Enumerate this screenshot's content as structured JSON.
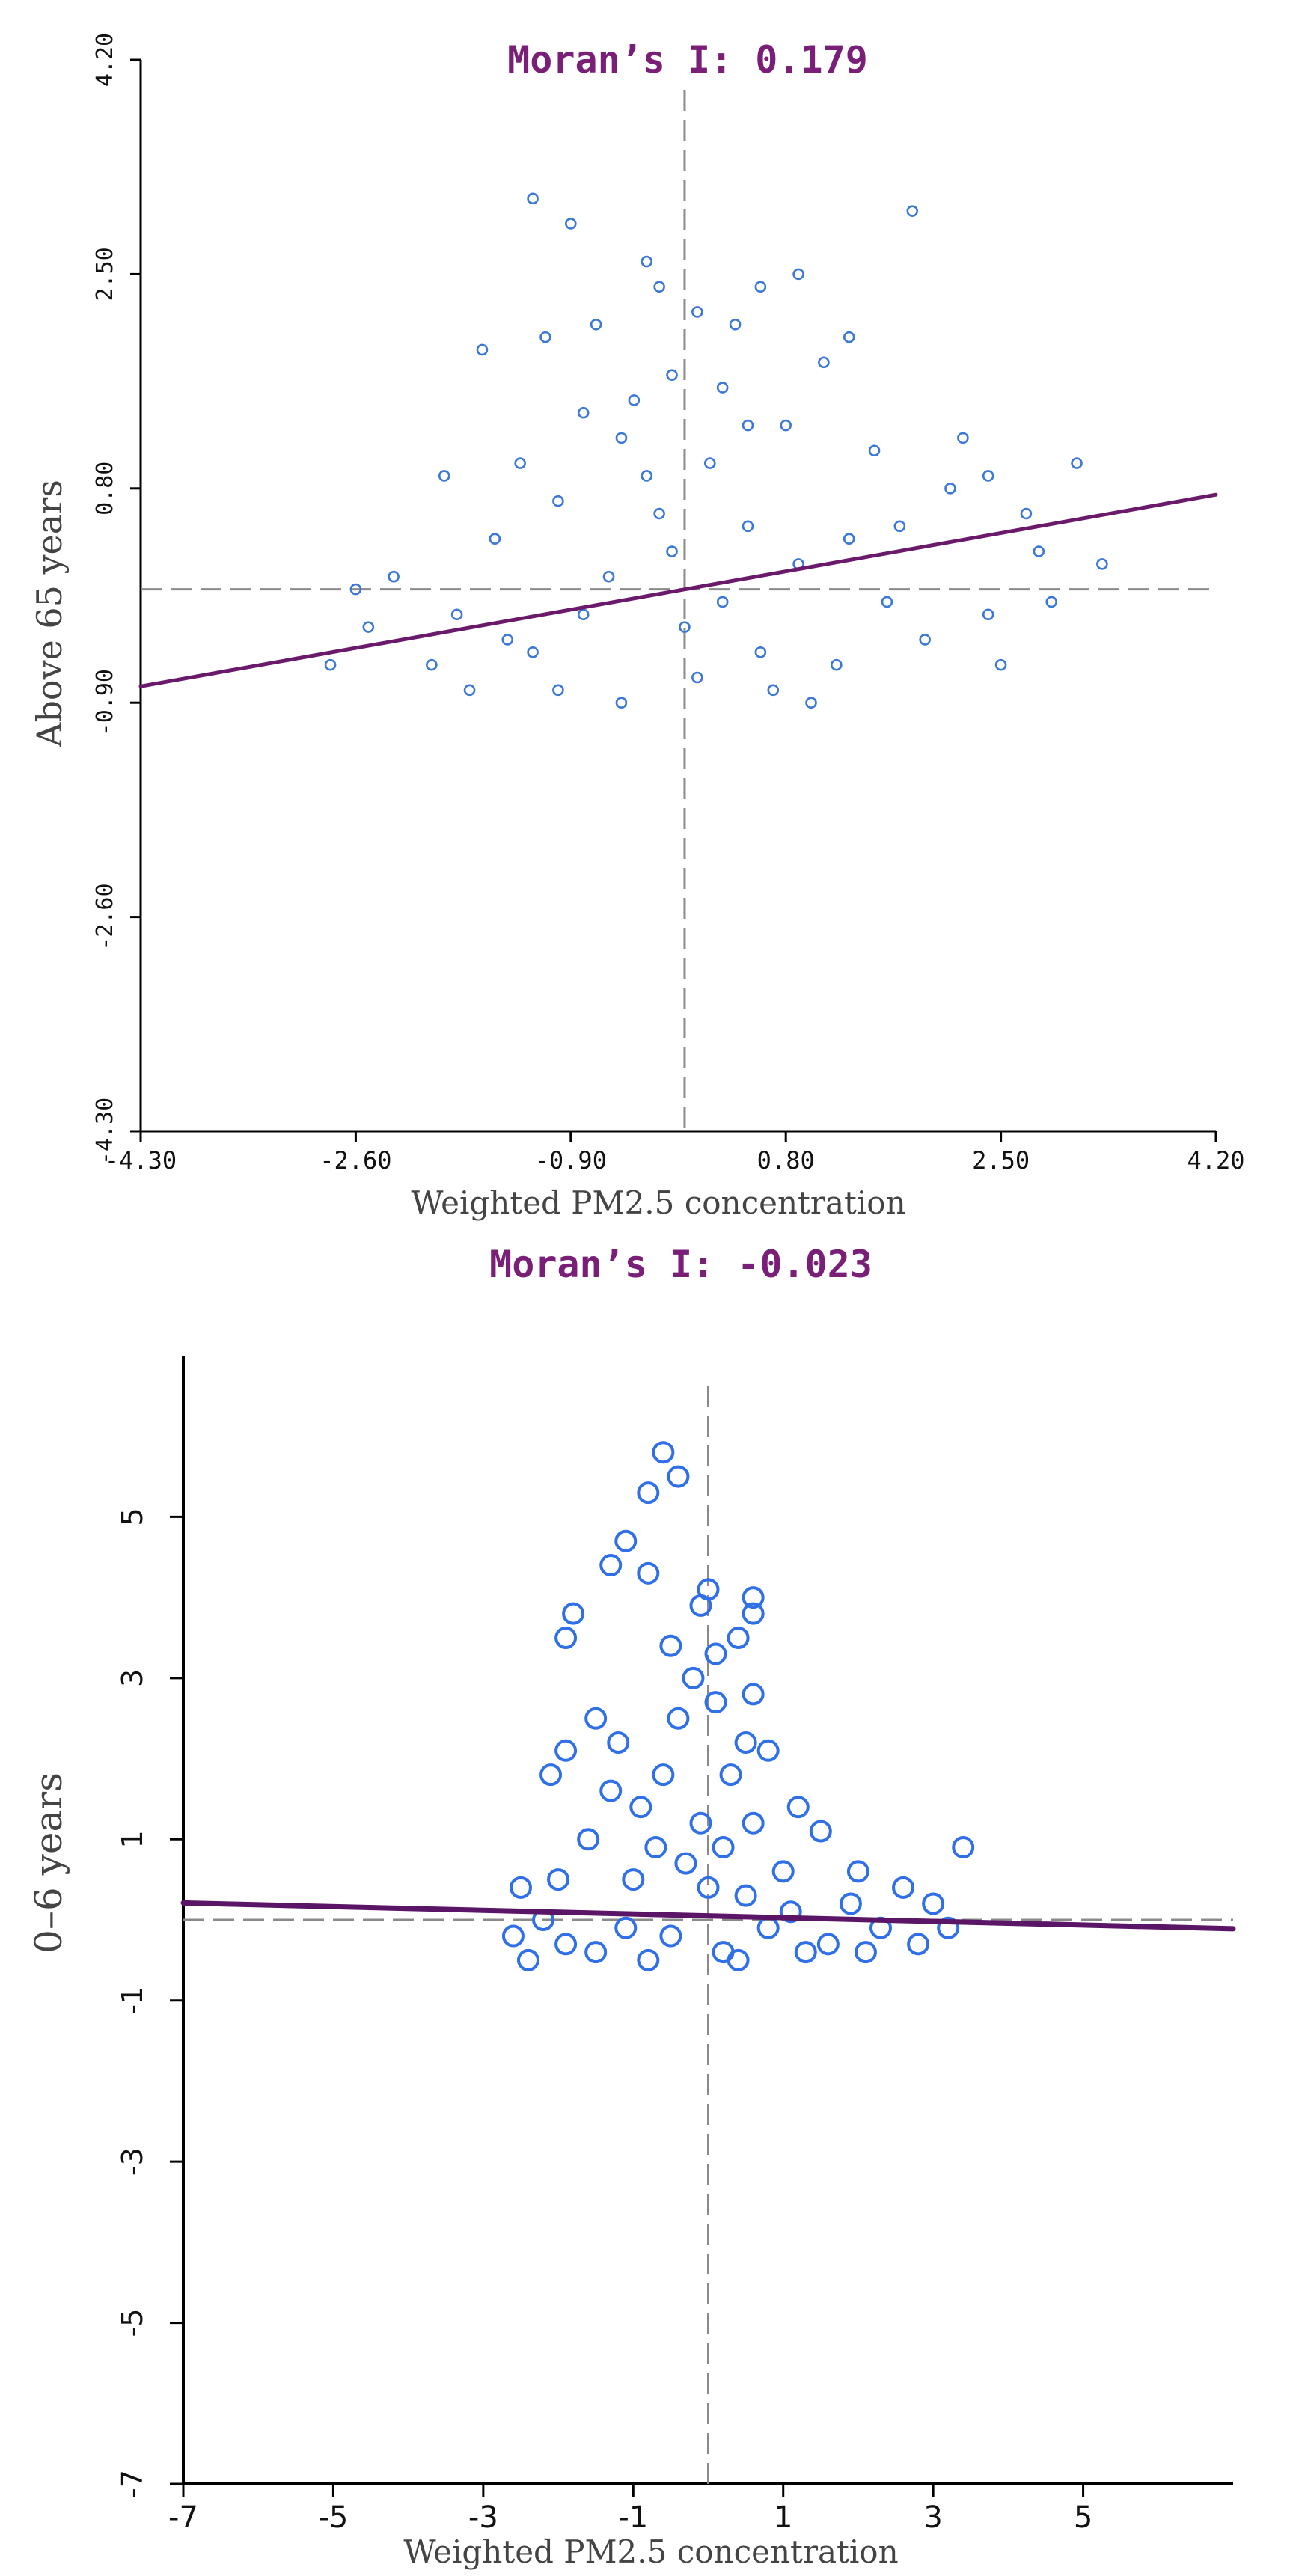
{
  "chart_data": [
    {
      "type": "scatter",
      "title": "Moran’s I: 0.179",
      "xlabel": "Weighted PM2.5 concentration",
      "ylabel": "Above 65 years",
      "xlim": [
        -4.3,
        4.2
      ],
      "ylim": [
        -4.3,
        4.2
      ],
      "xticks": [
        "-4.30",
        "-2.60",
        "-0.90",
        "0.80",
        "2.50",
        "4.20"
      ],
      "yticks": [
        "-4.30",
        "-2.60",
        "-0.90",
        "0.80",
        "2.50",
        "4.20"
      ],
      "x_mean": 0.0,
      "y_mean": 0.0,
      "regression_slope": 0.179,
      "regression_line": {
        "x": [
          -4.3,
          4.2
        ],
        "y": [
          -0.77,
          0.75
        ]
      },
      "points": [
        [
          -1.2,
          3.1
        ],
        [
          1.8,
          3.0
        ],
        [
          -0.3,
          2.6
        ],
        [
          -1.6,
          1.9
        ],
        [
          -0.7,
          2.1
        ],
        [
          0.4,
          2.1
        ],
        [
          1.3,
          2.0
        ],
        [
          -0.2,
          2.4
        ],
        [
          0.9,
          2.5
        ],
        [
          0.6,
          2.4
        ],
        [
          -0.1,
          1.7
        ],
        [
          0.1,
          2.2
        ],
        [
          -0.4,
          1.5
        ],
        [
          1.1,
          1.8
        ],
        [
          0.3,
          1.6
        ],
        [
          -0.8,
          1.4
        ],
        [
          0.8,
          1.3
        ],
        [
          2.2,
          1.2
        ],
        [
          1.5,
          1.1
        ],
        [
          2.4,
          0.9
        ],
        [
          3.1,
          1.0
        ],
        [
          -1.9,
          0.9
        ],
        [
          -0.5,
          1.2
        ],
        [
          0.2,
          1.0
        ],
        [
          2.7,
          0.6
        ],
        [
          2.8,
          0.3
        ],
        [
          2.9,
          -0.1
        ],
        [
          3.3,
          0.2
        ],
        [
          2.1,
          0.8
        ],
        [
          1.7,
          0.5
        ],
        [
          0.5,
          0.5
        ],
        [
          -0.2,
          0.6
        ],
        [
          -1.0,
          0.7
        ],
        [
          -1.5,
          0.4
        ],
        [
          -2.3,
          0.1
        ],
        [
          -2.6,
          0.0
        ],
        [
          -2.5,
          -0.3
        ],
        [
          -2.0,
          -0.6
        ],
        [
          -1.4,
          -0.4
        ],
        [
          -0.8,
          -0.2
        ],
        [
          0.0,
          -0.3
        ],
        [
          0.6,
          -0.5
        ],
        [
          1.2,
          -0.6
        ],
        [
          1.9,
          -0.4
        ],
        [
          2.4,
          -0.2
        ],
        [
          -2.8,
          -0.6
        ],
        [
          -1.0,
          -0.8
        ],
        [
          0.1,
          -0.7
        ],
        [
          1.0,
          -0.9
        ],
        [
          -0.5,
          -0.9
        ],
        [
          -1.7,
          -0.8
        ],
        [
          2.5,
          -0.6
        ],
        [
          -0.9,
          2.9
        ],
        [
          -1.1,
          2.0
        ],
        [
          0.5,
          1.3
        ],
        [
          -0.3,
          0.9
        ],
        [
          -1.3,
          1.0
        ],
        [
          1.3,
          0.4
        ],
        [
          0.9,
          0.2
        ],
        [
          -0.6,
          0.1
        ],
        [
          -1.8,
          -0.2
        ],
        [
          1.6,
          -0.1
        ],
        [
          -0.1,
          0.3
        ],
        [
          0.3,
          -0.1
        ],
        [
          -1.2,
          -0.5
        ],
        [
          0.7,
          -0.8
        ]
      ]
    },
    {
      "type": "scatter",
      "title": "Moran’s I: -0.023",
      "xlabel": "Weighted PM2.5 concentration",
      "ylabel": "0–6 years",
      "xlim": [
        -7,
        7
      ],
      "ylim": [
        -7,
        7
      ],
      "xticks": [
        "-7",
        "-5",
        "-3",
        "-1",
        "1",
        "3",
        "5"
      ],
      "yticks": [
        "-7",
        "-5",
        "-3",
        "-1",
        "1",
        "3",
        "5"
      ],
      "x_mean": 0.0,
      "y_mean": 0.0,
      "regression_slope": -0.023,
      "regression_line": {
        "x": [
          -7,
          7
        ],
        "y": [
          0.21,
          -0.11
        ]
      },
      "points": [
        [
          -0.6,
          5.8
        ],
        [
          -0.4,
          5.5
        ],
        [
          -0.8,
          5.3
        ],
        [
          -1.1,
          4.7
        ],
        [
          -1.3,
          4.4
        ],
        [
          -0.8,
          4.3
        ],
        [
          0.0,
          4.1
        ],
        [
          0.6,
          4.0
        ],
        [
          0.6,
          3.8
        ],
        [
          -0.1,
          3.9
        ],
        [
          -1.8,
          3.8
        ],
        [
          -1.9,
          3.5
        ],
        [
          0.4,
          3.5
        ],
        [
          -0.5,
          3.4
        ],
        [
          0.1,
          3.3
        ],
        [
          -0.2,
          3.0
        ],
        [
          0.6,
          2.8
        ],
        [
          -1.5,
          2.5
        ],
        [
          -1.2,
          2.2
        ],
        [
          -1.9,
          2.1
        ],
        [
          0.5,
          2.2
        ],
        [
          0.8,
          2.1
        ],
        [
          -0.6,
          1.8
        ],
        [
          0.3,
          1.8
        ],
        [
          -2.1,
          1.8
        ],
        [
          1.2,
          1.4
        ],
        [
          1.5,
          1.1
        ],
        [
          -0.9,
          1.4
        ],
        [
          -0.1,
          1.2
        ],
        [
          -1.6,
          1.0
        ],
        [
          0.2,
          0.9
        ],
        [
          3.4,
          0.9
        ],
        [
          2.0,
          0.6
        ],
        [
          2.6,
          0.4
        ],
        [
          1.0,
          0.6
        ],
        [
          -2.5,
          0.4
        ],
        [
          -1.0,
          0.5
        ],
        [
          0.5,
          0.3
        ],
        [
          -0.3,
          0.7
        ],
        [
          3.0,
          0.2
        ],
        [
          2.3,
          -0.1
        ],
        [
          1.6,
          -0.3
        ],
        [
          -2.6,
          -0.2
        ],
        [
          -2.4,
          -0.5
        ],
        [
          -1.5,
          -0.4
        ],
        [
          -0.5,
          -0.2
        ],
        [
          0.4,
          -0.5
        ],
        [
          1.3,
          -0.4
        ],
        [
          2.1,
          -0.4
        ],
        [
          3.2,
          -0.1
        ],
        [
          -1.9,
          -0.3
        ],
        [
          -0.8,
          -0.5
        ],
        [
          0.2,
          -0.4
        ],
        [
          0.8,
          -0.1
        ],
        [
          1.9,
          0.2
        ],
        [
          -2.0,
          0.5
        ],
        [
          -1.3,
          1.6
        ],
        [
          -0.4,
          2.5
        ],
        [
          0.1,
          2.7
        ],
        [
          -0.7,
          0.9
        ],
        [
          0.6,
          1.2
        ],
        [
          1.1,
          0.1
        ],
        [
          2.8,
          -0.3
        ],
        [
          -2.2,
          0.0
        ],
        [
          -1.1,
          -0.1
        ],
        [
          0.0,
          0.4
        ]
      ]
    }
  ]
}
